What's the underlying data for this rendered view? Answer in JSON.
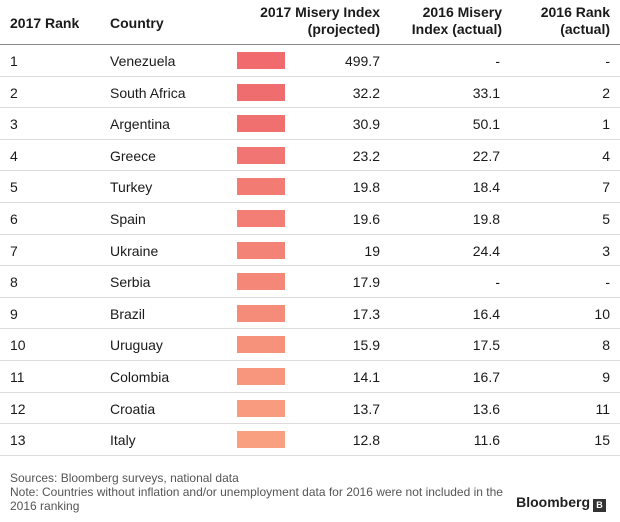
{
  "header": {
    "rank_2017": "2017 Rank",
    "country": "Country",
    "misery_2017": [
      "2017 Misery Index",
      "(projected)"
    ],
    "misery_2016": [
      "2016 Misery",
      "Index (actual)"
    ],
    "rank_2016": [
      "2016 Rank",
      "(actual)"
    ]
  },
  "chart_data": {
    "type": "table",
    "columns": [
      "2017 Rank",
      "Country",
      "2017 Misery Index (projected)",
      "2016 Misery Index (actual)",
      "2016 Rank (actual)"
    ],
    "rows": [
      {
        "rank_2017": "1",
        "country": "Venezuela",
        "misery_2017": "499.7",
        "misery_2016": "-",
        "rank_2016": "-",
        "color": "#f06a6e"
      },
      {
        "rank_2017": "2",
        "country": "South Africa",
        "misery_2017": "32.2",
        "misery_2016": "33.1",
        "rank_2016": "2",
        "color": "#f06d6f"
      },
      {
        "rank_2017": "3",
        "country": "Argentina",
        "misery_2017": "30.9",
        "misery_2016": "50.1",
        "rank_2016": "1",
        "color": "#f07070"
      },
      {
        "rank_2017": "4",
        "country": "Greece",
        "misery_2017": "23.2",
        "misery_2016": "22.7",
        "rank_2016": "4",
        "color": "#f17572"
      },
      {
        "rank_2017": "5",
        "country": "Turkey",
        "misery_2017": "19.8",
        "misery_2016": "18.4",
        "rank_2016": "7",
        "color": "#f27b74"
      },
      {
        "rank_2017": "6",
        "country": "Spain",
        "misery_2017": "19.6",
        "misery_2016": "19.8",
        "rank_2016": "5",
        "color": "#f27e75"
      },
      {
        "rank_2017": "7",
        "country": "Ukraine",
        "misery_2017": "19",
        "misery_2016": "24.4",
        "rank_2016": "3",
        "color": "#f38277"
      },
      {
        "rank_2017": "8",
        "country": "Serbia",
        "misery_2017": "17.9",
        "misery_2016": "-",
        "rank_2016": "-",
        "color": "#f48778"
      },
      {
        "rank_2017": "9",
        "country": "Brazil",
        "misery_2017": "17.3",
        "misery_2016": "16.4",
        "rank_2016": "10",
        "color": "#f58c7a"
      },
      {
        "rank_2017": "10",
        "country": "Uruguay",
        "misery_2017": "15.9",
        "misery_2016": "17.5",
        "rank_2016": "8",
        "color": "#f6917b"
      },
      {
        "rank_2017": "11",
        "country": "Colombia",
        "misery_2017": "14.1",
        "misery_2016": "16.7",
        "rank_2016": "9",
        "color": "#f7967d"
      },
      {
        "rank_2017": "12",
        "country": "Croatia",
        "misery_2017": "13.7",
        "misery_2016": "13.6",
        "rank_2016": "11",
        "color": "#f89b7e"
      },
      {
        "rank_2017": "13",
        "country": "Italy",
        "misery_2017": "12.8",
        "misery_2016": "11.6",
        "rank_2016": "15",
        "color": "#f9a080"
      }
    ]
  },
  "footer": {
    "sources": "Sources: Bloomberg surveys, national data",
    "note": "Note: Countries without inflation and/or unemployment data for 2016 were not included in the 2016 ranking",
    "brand": "Bloomberg",
    "brand_icon": "bloomberg-logo-icon"
  }
}
